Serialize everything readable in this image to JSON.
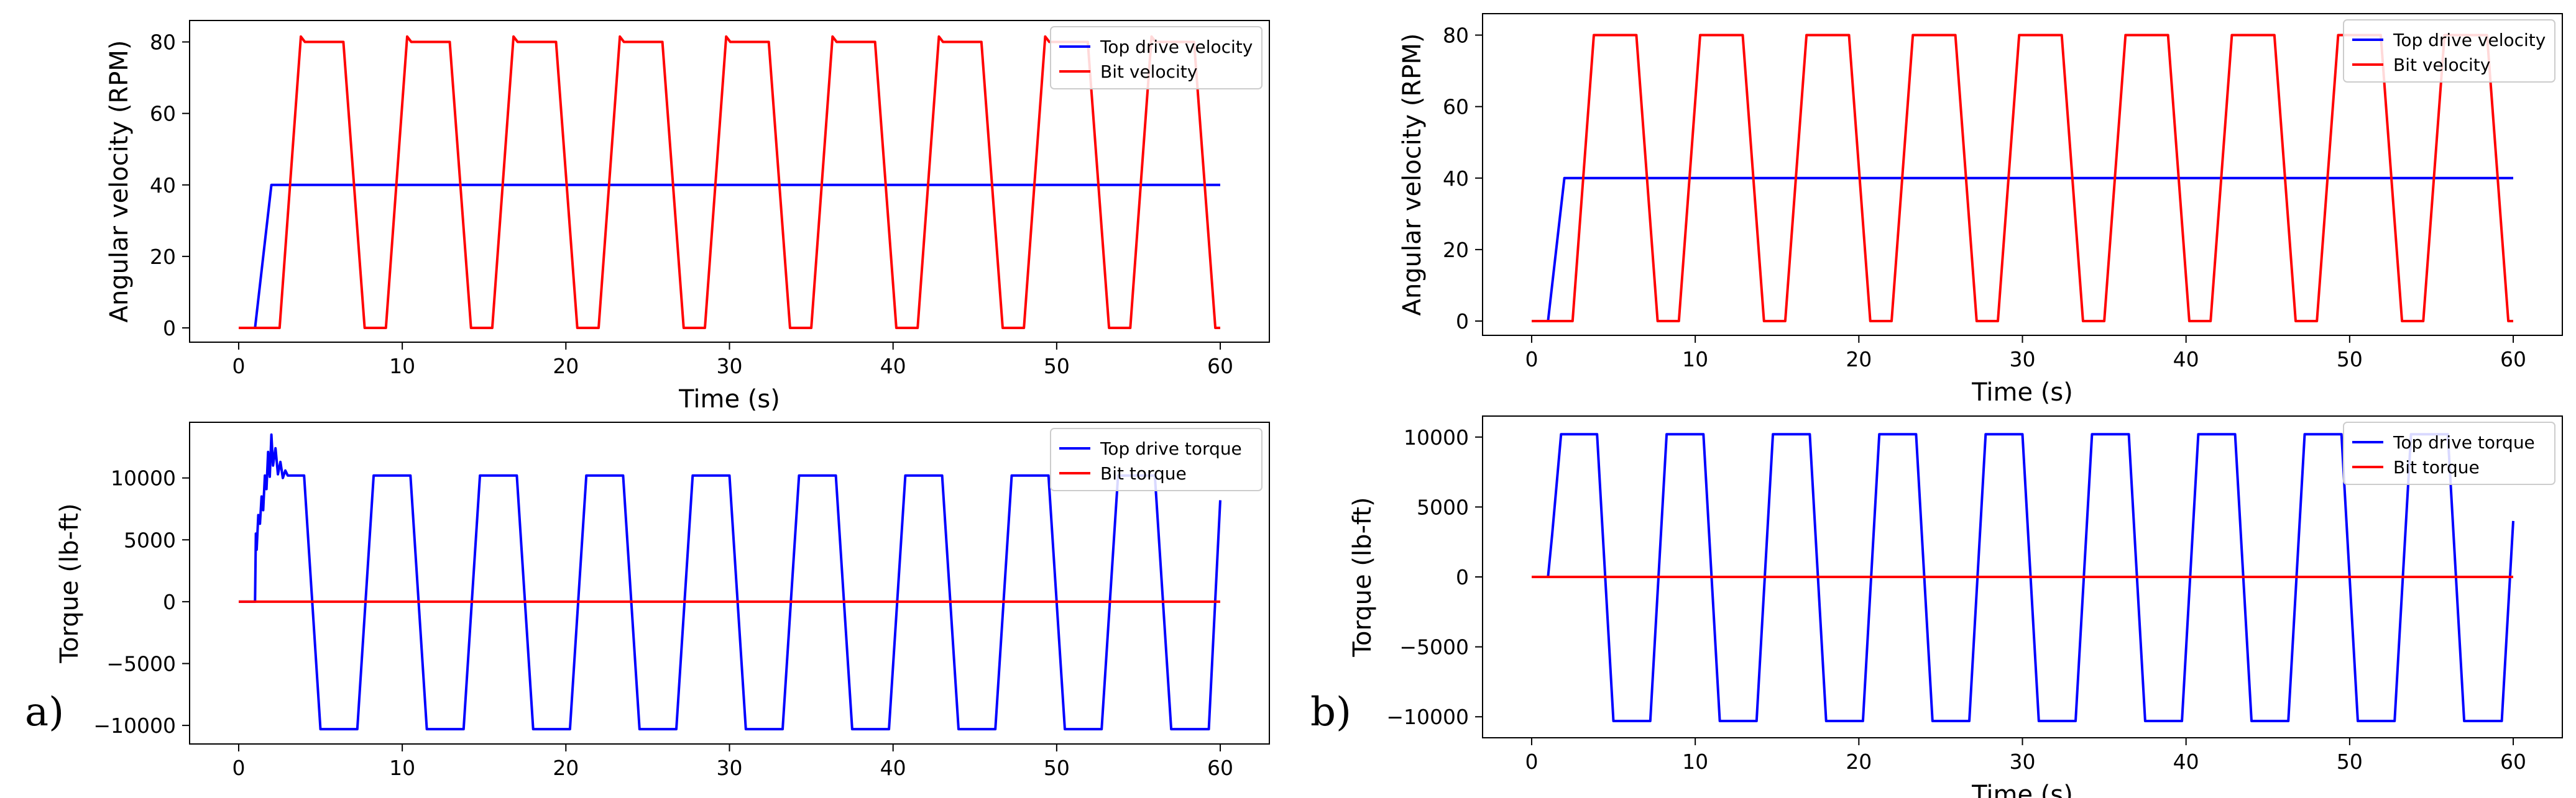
{
  "panel_labels": [
    "a)",
    "b)"
  ],
  "chart_data": [
    {
      "id": "a-velocity",
      "panel": "a)",
      "type": "line",
      "xlabel": "Time (s)",
      "ylabel": "Angular velocity (RPM)",
      "xlim": [
        -3,
        63
      ],
      "ylim": [
        -4,
        86
      ],
      "xticks": [
        0,
        10,
        20,
        30,
        40,
        50,
        60
      ],
      "yticks": [
        0,
        20,
        40,
        60,
        80
      ],
      "grid": false,
      "legend": "top-right",
      "series": [
        {
          "name": "Top drive velocity",
          "color": "#0000ff",
          "shape": "ramp",
          "params": {
            "t0": 0,
            "t1": 1.0,
            "t2": 2.0,
            "y0": 0,
            "y1": 40,
            "tend": 60
          }
        },
        {
          "name": "Bit velocity",
          "color": "#ff0000",
          "shape": "square",
          "params": {
            "period": 6.5,
            "rise_at": 2.5,
            "high": 80,
            "low": 0,
            "tr": 1.3,
            "on": 2.6,
            "tend": 60,
            "overshoot": 1.5
          }
        }
      ]
    },
    {
      "id": "a-torque",
      "panel": "a)",
      "type": "line",
      "xlabel": "",
      "ylabel": "Torque (lb-ft)",
      "xlim": [
        -3,
        63
      ],
      "ylim": [
        -11500,
        14500
      ],
      "xticks": [
        0,
        10,
        20,
        30,
        40,
        50,
        60
      ],
      "yticks": [
        -10000,
        -5000,
        0,
        5000,
        10000
      ],
      "grid": false,
      "legend": "top-right",
      "series": [
        {
          "name": "Top drive torque",
          "color": "#0000ff",
          "shape": "torque",
          "params": {
            "start": 1.0,
            "high": 10200,
            "low": -10300,
            "period": 6.5,
            "first_fall": 4.0,
            "tr": 1.0,
            "hold": 2.25,
            "tend": 60,
            "end_value": 8200,
            "noisy_start": true
          }
        },
        {
          "name": "Bit torque",
          "color": "#ff0000",
          "shape": "flat",
          "params": {
            "y": 0,
            "tend": 60
          }
        }
      ]
    },
    {
      "id": "b-velocity",
      "panel": "b)",
      "type": "line",
      "xlabel": "Time (s)",
      "ylabel": "Angular velocity (RPM)",
      "xlim": [
        -3,
        63
      ],
      "ylim": [
        -4,
        86
      ],
      "xticks": [
        0,
        10,
        20,
        30,
        40,
        50,
        60
      ],
      "yticks": [
        0,
        20,
        40,
        60,
        80
      ],
      "grid": false,
      "legend": "top-right",
      "series": [
        {
          "name": "Top drive velocity",
          "color": "#0000ff",
          "shape": "ramp",
          "params": {
            "t0": 0,
            "t1": 1.0,
            "t2": 2.0,
            "y0": 0,
            "y1": 40,
            "tend": 60
          }
        },
        {
          "name": "Bit velocity",
          "color": "#ff0000",
          "shape": "square",
          "params": {
            "period": 6.5,
            "rise_at": 2.5,
            "high": 80,
            "low": 0,
            "tr": 1.3,
            "on": 2.6,
            "tend": 60,
            "overshoot": 0
          }
        }
      ]
    },
    {
      "id": "b-torque",
      "panel": "b)",
      "type": "line",
      "xlabel": "Time (s)",
      "ylabel": "Torque (lb-ft)",
      "xlim": [
        -3,
        63
      ],
      "ylim": [
        -11500,
        11500
      ],
      "xticks": [
        0,
        10,
        20,
        30,
        40,
        50,
        60
      ],
      "yticks": [
        -10000,
        -5000,
        0,
        5000,
        10000
      ],
      "grid": false,
      "legend": "top-right",
      "series": [
        {
          "name": "Top drive torque",
          "color": "#0000ff",
          "shape": "torque",
          "params": {
            "start": 1.0,
            "high": 10200,
            "low": -10300,
            "period": 6.5,
            "first_fall": 4.0,
            "tr": 1.0,
            "hold": 2.25,
            "tend": 60,
            "end_value": 4000,
            "noisy_start": false
          }
        },
        {
          "name": "Bit torque",
          "color": "#ff0000",
          "shape": "flat",
          "params": {
            "y": 0,
            "tend": 60
          }
        }
      ]
    }
  ]
}
